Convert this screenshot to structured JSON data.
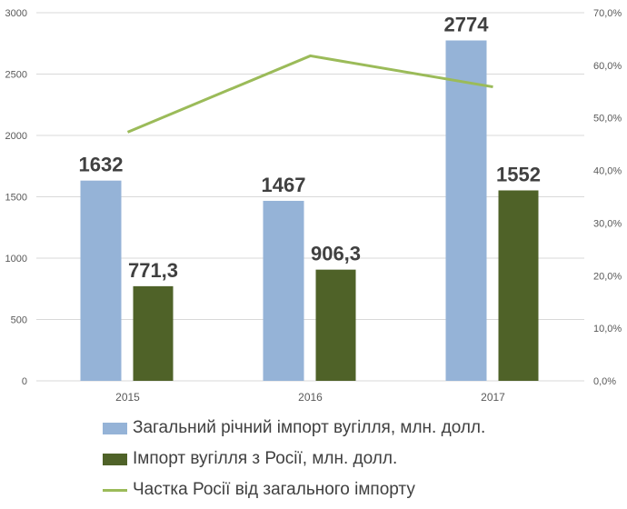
{
  "chart_data": {
    "type": "bar+line",
    "categories": [
      "2015",
      "2016",
      "2017"
    ],
    "series": [
      {
        "name": "Загальний річний імпорт вугілля, млн. долл.",
        "type": "bar",
        "axis": "left",
        "values": [
          1632,
          1467,
          2774
        ],
        "labels": [
          "1632",
          "1467",
          "2774"
        ],
        "color": "#95b3d7"
      },
      {
        "name": "Імпорт вугілля з Росії, млн. долл.",
        "type": "bar",
        "axis": "left",
        "values": [
          771.3,
          906.3,
          1552
        ],
        "labels": [
          "771,3",
          "906,3",
          "1552"
        ],
        "color": "#4f6228"
      },
      {
        "name": "Частка Росії від загального імпорту",
        "type": "line",
        "axis": "right",
        "values": [
          47.3,
          61.8,
          55.9
        ],
        "color": "#9bbb59"
      }
    ],
    "ylim": [
      0,
      3000
    ],
    "yticks": [
      "0",
      "500",
      "1000",
      "1500",
      "2000",
      "2500",
      "3000"
    ],
    "y2lim": [
      0,
      70
    ],
    "y2ticks": [
      "0,0%",
      "10,0%",
      "20,0%",
      "30,0%",
      "40,0%",
      "50,0%",
      "60,0%",
      "70,0%"
    ],
    "grid": true,
    "legend": "bottom"
  }
}
